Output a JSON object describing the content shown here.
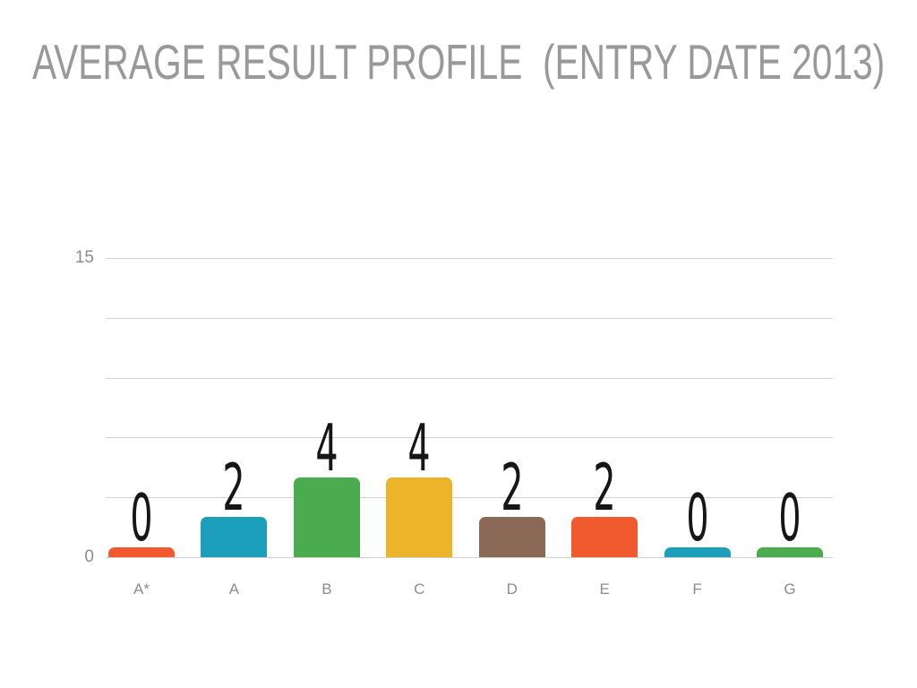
{
  "title": "AVERAGE RESULT PROFILE  (ENTRY DATE 2013)",
  "chart_data": {
    "type": "bar",
    "title": "AVERAGE RESULT PROFILE  (ENTRY DATE 2013)",
    "categories": [
      "A*",
      "A",
      "B",
      "C",
      "D",
      "E",
      "F",
      "G"
    ],
    "values": [
      0,
      2,
      4,
      4,
      2,
      2,
      0,
      0
    ],
    "bar_colors": [
      "#f05a2e",
      "#1b9fba",
      "#4aab4f",
      "#ecb32b",
      "#8a6a57",
      "#f05a2e",
      "#1b9fba",
      "#4aab4f"
    ],
    "ylim": [
      0,
      15
    ],
    "gridline_values": [
      0,
      3,
      6,
      9,
      12,
      15
    ],
    "y_tick_labels": [
      {
        "value": 15,
        "label": "15"
      },
      {
        "value": 0,
        "label": "0"
      }
    ],
    "show_value_labels": true,
    "grid": true,
    "legend": false,
    "xlabel": "",
    "ylabel": "",
    "colors": {
      "title_text": "#999999",
      "axis_text": "#8d8d8d",
      "gridline": "#d2d2d2",
      "value_label_text": "#161616",
      "background": "#ffffff"
    }
  }
}
